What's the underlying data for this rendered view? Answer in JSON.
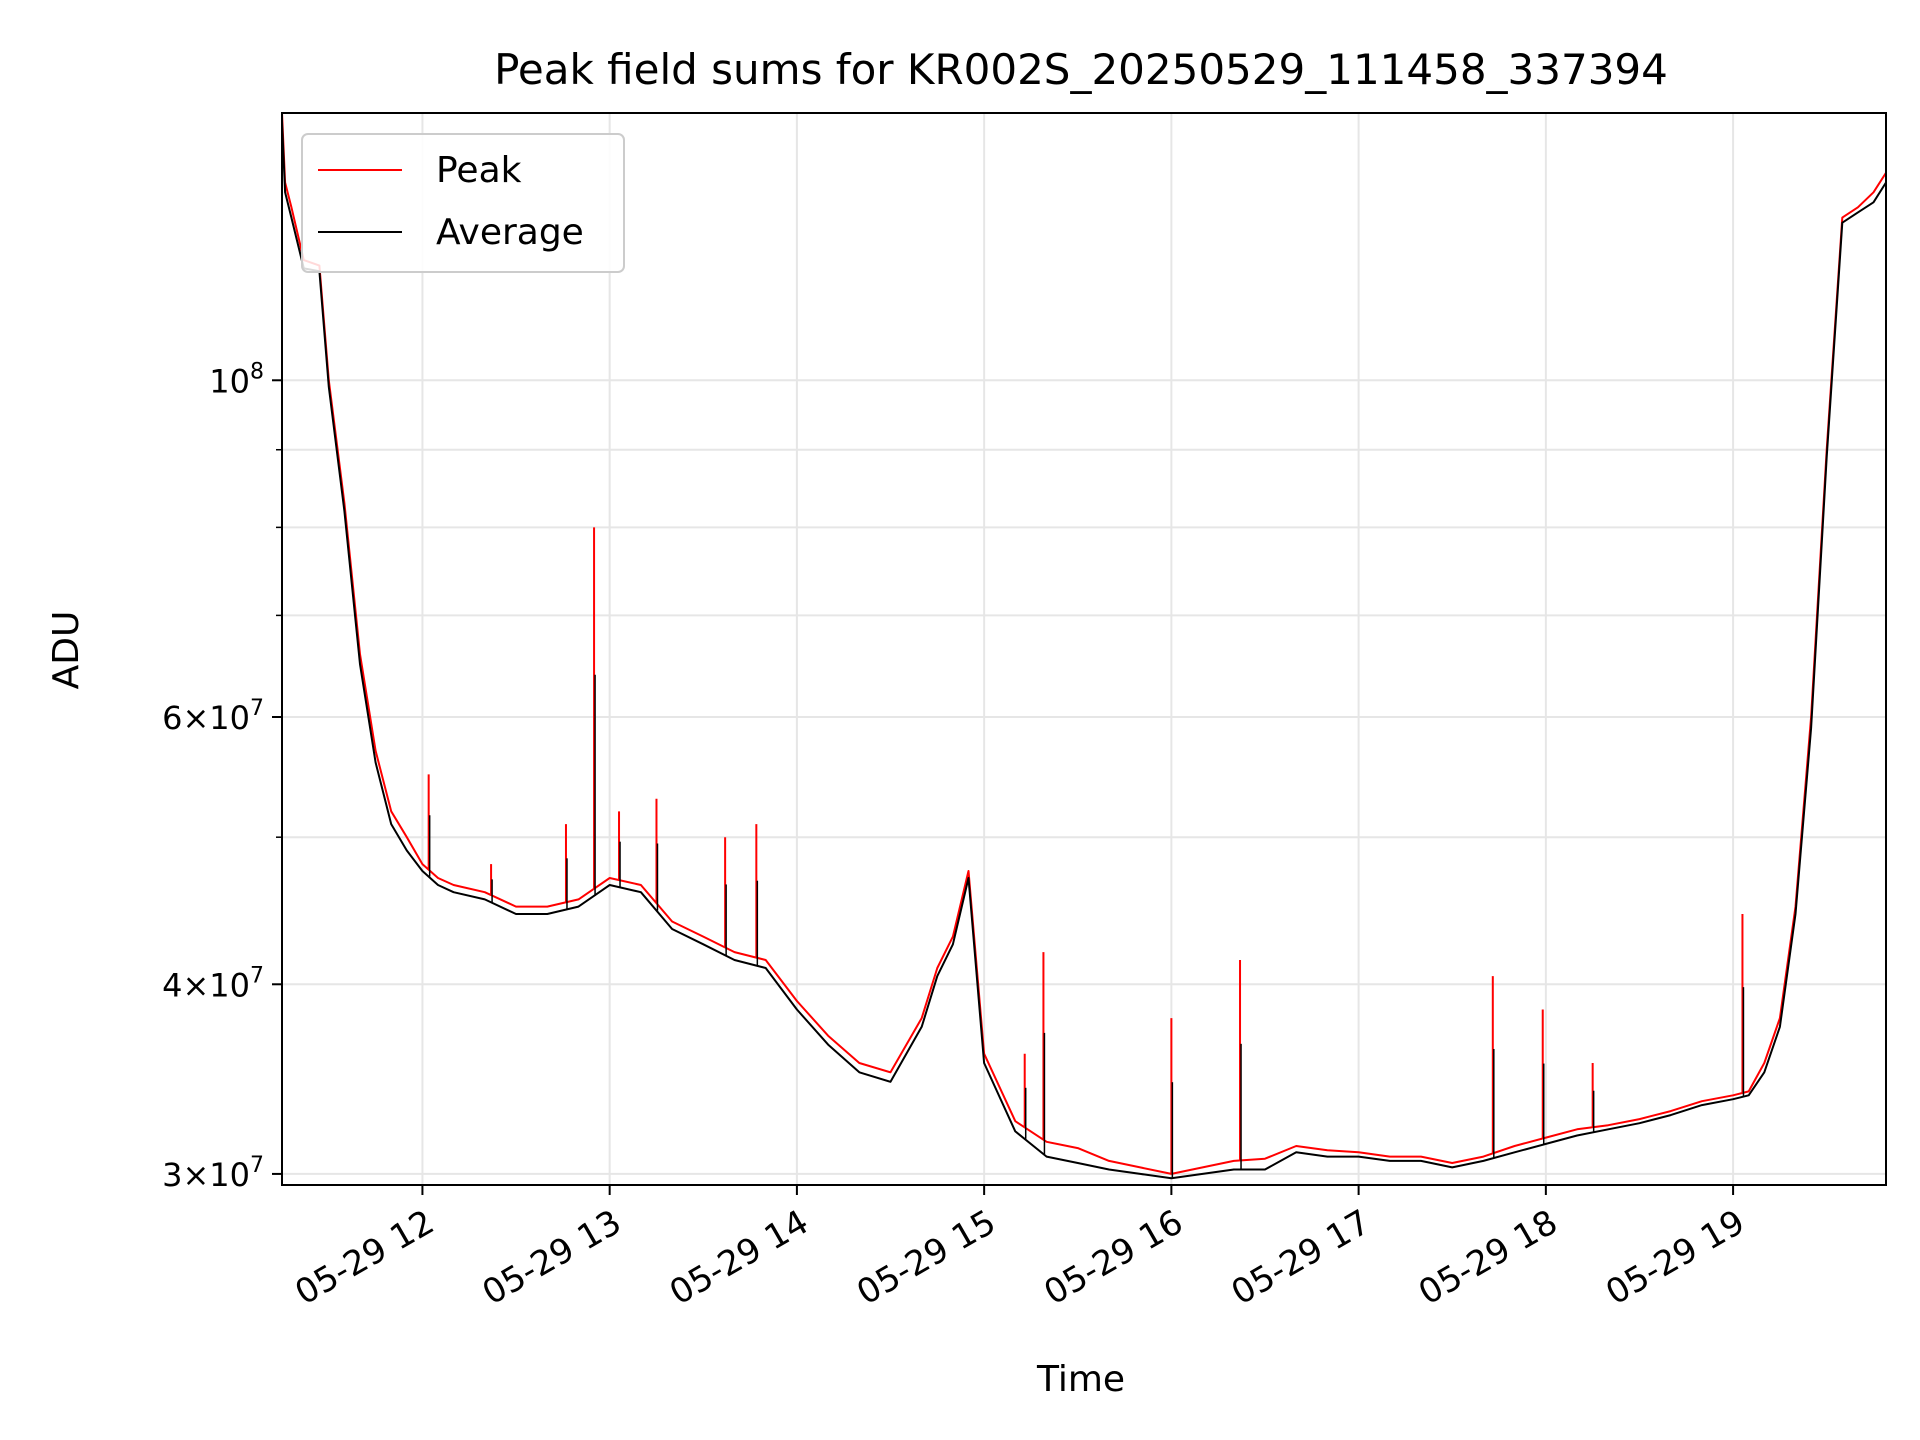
{
  "chart_data": {
    "type": "line",
    "title": "Peak field sums for KR002S_20250529_111458_337394",
    "xlabel": "Time",
    "ylabel": "ADU",
    "yscale": "log",
    "ylim": [
      29500000,
      150000000
    ],
    "xlim": [
      "2025-05-29 11:15",
      "2025-05-29 19:49"
    ],
    "grid": true,
    "legend_position": "top-left",
    "x_ticks": [
      "05-29 12",
      "05-29 13",
      "05-29 14",
      "05-29 15",
      "05-29 16",
      "05-29 17",
      "05-29 18",
      "05-29 19"
    ],
    "y_ticks": [
      {
        "base": "3",
        "exp": "7",
        "value": 30000000
      },
      {
        "base": "4",
        "exp": "7",
        "value": 40000000
      },
      {
        "base": "6",
        "exp": "7",
        "value": 60000000
      },
      {
        "base": "",
        "exp": "8",
        "value": 100000000
      }
    ],
    "x": [
      "11:15",
      "11:16",
      "11:18",
      "11:22",
      "11:27",
      "11:30",
      "11:35",
      "11:40",
      "11:45",
      "11:50",
      "11:55",
      "12:00",
      "12:05",
      "12:10",
      "12:20",
      "12:30",
      "12:40",
      "12:50",
      "13:00",
      "13:10",
      "13:20",
      "13:30",
      "13:40",
      "13:50",
      "14:00",
      "14:10",
      "14:20",
      "14:30",
      "14:40",
      "14:45",
      "14:50",
      "14:55",
      "15:00",
      "15:10",
      "15:20",
      "15:30",
      "15:40",
      "15:50",
      "16:00",
      "16:10",
      "16:20",
      "16:30",
      "16:40",
      "16:50",
      "17:00",
      "17:10",
      "17:20",
      "17:30",
      "17:40",
      "17:50",
      "18:00",
      "18:10",
      "18:20",
      "18:30",
      "18:40",
      "18:50",
      "19:00",
      "19:05",
      "19:10",
      "19:15",
      "19:20",
      "19:25",
      "19:30",
      "19:35",
      "19:40",
      "19:45",
      "19:49"
    ],
    "series": [
      {
        "name": "Peak",
        "color": "#ff0000",
        "values": [
          150000000,
          135000000,
          130000000,
          120000000,
          119000000,
          100000000,
          83000000,
          66000000,
          57000000,
          52000000,
          50000000,
          48000000,
          47000000,
          46500000,
          46000000,
          45000000,
          45000000,
          45500000,
          47000000,
          46500000,
          44000000,
          43000000,
          42000000,
          41500000,
          39000000,
          37000000,
          35500000,
          35000000,
          38000000,
          41000000,
          43000000,
          47500000,
          36000000,
          32500000,
          31500000,
          31200000,
          30600000,
          30300000,
          30000000,
          30300000,
          30600000,
          30700000,
          31300000,
          31100000,
          31000000,
          30800000,
          30800000,
          30500000,
          30800000,
          31300000,
          31700000,
          32100000,
          32300000,
          32600000,
          33000000,
          33500000,
          33800000,
          34000000,
          35500000,
          38000000,
          45000000,
          60000000,
          90000000,
          128000000,
          130000000,
          133000000,
          137000000
        ]
      },
      {
        "name": "Average",
        "color": "#000000",
        "values": [
          148000000,
          133000000,
          128000000,
          118500000,
          118000000,
          99000000,
          82000000,
          65000000,
          56000000,
          51000000,
          49000000,
          47500000,
          46500000,
          46000000,
          45500000,
          44500000,
          44500000,
          45000000,
          46500000,
          46000000,
          43500000,
          42500000,
          41500000,
          41000000,
          38500000,
          36500000,
          35000000,
          34500000,
          37500000,
          40500000,
          42500000,
          47000000,
          35500000,
          32000000,
          30800000,
          30500000,
          30200000,
          30000000,
          29800000,
          30000000,
          30200000,
          30200000,
          31000000,
          30800000,
          30800000,
          30600000,
          30600000,
          30300000,
          30600000,
          31000000,
          31400000,
          31800000,
          32100000,
          32400000,
          32800000,
          33300000,
          33600000,
          33800000,
          35000000,
          37500000,
          44500000,
          59000000,
          89000000,
          127000000,
          129000000,
          131000000,
          135000000
        ]
      }
    ],
    "spikes": [
      {
        "x": "12:02",
        "value": 55000000
      },
      {
        "x": "12:22",
        "value": 48000000
      },
      {
        "x": "12:46",
        "value": 51000000
      },
      {
        "x": "12:55",
        "value": 80000000
      },
      {
        "x": "13:03",
        "value": 52000000
      },
      {
        "x": "13:15",
        "value": 53000000
      },
      {
        "x": "13:37",
        "value": 50000000
      },
      {
        "x": "13:47",
        "value": 51000000
      },
      {
        "x": "15:13",
        "value": 36000000
      },
      {
        "x": "15:19",
        "value": 42000000
      },
      {
        "x": "16:00",
        "value": 38000000
      },
      {
        "x": "16:22",
        "value": 41500000
      },
      {
        "x": "17:43",
        "value": 40500000
      },
      {
        "x": "17:59",
        "value": 38500000
      },
      {
        "x": "18:15",
        "value": 35500000
      },
      {
        "x": "19:03",
        "value": 44500000
      }
    ]
  }
}
